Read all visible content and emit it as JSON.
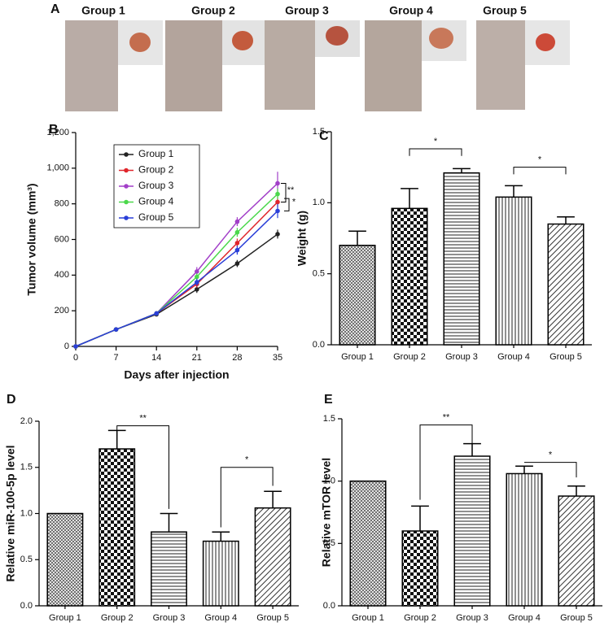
{
  "figure_a": {
    "label": "A",
    "titles": [
      "Group 1",
      "Group 2",
      "Group 3",
      "Group 4",
      "Group 5"
    ]
  },
  "chart_data": [
    {
      "type": "line",
      "label": "B",
      "y_label": "Tumor volume (mm³)",
      "x_label": "Days after injection",
      "x": [
        0,
        7,
        14,
        21,
        28,
        35
      ],
      "xlim": [
        0,
        35
      ],
      "xticks": [
        0,
        7,
        14,
        21,
        28,
        35
      ],
      "ylim": [
        0,
        1200
      ],
      "yticks": [
        0,
        200,
        400,
        600,
        800,
        {
          "value": 1000,
          "label": "1,000"
        },
        {
          "value": 1200,
          "label": "1,200"
        }
      ],
      "legend": "upper left",
      "series": [
        {
          "name": "Group 1",
          "color": "#222222",
          "values": [
            0,
            95,
            180,
            320,
            465,
            630
          ],
          "errors": [
            0,
            5,
            10,
            20,
            20,
            25
          ]
        },
        {
          "name": "Group 2",
          "color": "#e0252b",
          "values": [
            0,
            95,
            185,
            350,
            580,
            810
          ],
          "errors": [
            0,
            5,
            10,
            20,
            25,
            30
          ]
        },
        {
          "name": "Group 3",
          "color": "#a23fc8",
          "values": [
            0,
            95,
            185,
            420,
            700,
            915
          ],
          "errors": [
            0,
            5,
            10,
            25,
            25,
            65
          ]
        },
        {
          "name": "Group 4",
          "color": "#4bd84b",
          "values": [
            0,
            95,
            185,
            390,
            640,
            855
          ],
          "errors": [
            0,
            5,
            10,
            20,
            25,
            30
          ]
        },
        {
          "name": "Group 5",
          "color": "#2a3fd8",
          "values": [
            0,
            95,
            185,
            360,
            540,
            760
          ],
          "errors": [
            0,
            5,
            10,
            20,
            25,
            40
          ]
        }
      ],
      "annotations": [
        "**",
        "*"
      ]
    },
    {
      "type": "bar",
      "label": "C",
      "y_label": "Weight (g)",
      "categories": [
        "Group 1",
        "Group 2",
        "Group 3",
        "Group 4",
        "Group 5"
      ],
      "values": [
        0.7,
        0.96,
        1.21,
        1.04,
        0.85
      ],
      "errors": [
        0.1,
        0.14,
        0.03,
        0.08,
        0.05
      ],
      "ylim": [
        0,
        1.5
      ],
      "yticks": [
        {
          "value": 0,
          "label": "0.0"
        },
        0.5,
        {
          "value": 1,
          "label": "1.0"
        },
        1.5
      ],
      "annotations": [
        "*",
        "*"
      ]
    },
    {
      "type": "bar",
      "label": "D",
      "y_label": "Relative miR-100-5p level",
      "categories": [
        "Group 1",
        "Group 2",
        "Group 3",
        "Group 4",
        "Group 5"
      ],
      "values": [
        1.0,
        1.7,
        0.8,
        0.7,
        1.06
      ],
      "errors": [
        0,
        0.2,
        0.2,
        0.1,
        0.18
      ],
      "ylim": [
        0,
        2
      ],
      "yticks": [
        {
          "value": 0,
          "label": "0.0"
        },
        0.5,
        {
          "value": 1,
          "label": "1.0"
        },
        1.5,
        {
          "value": 2,
          "label": "2.0"
        }
      ],
      "annotations": [
        "**",
        "*"
      ]
    },
    {
      "type": "bar",
      "label": "E",
      "y_label": "Relative mTOR level",
      "categories": [
        "Group 1",
        "Group 2",
        "Group 3",
        "Group 4",
        "Group 5"
      ],
      "values": [
        1.0,
        0.6,
        1.2,
        1.06,
        0.88
      ],
      "errors": [
        0,
        0.2,
        0.1,
        0.06,
        0.08
      ],
      "ylim": [
        0,
        1.5
      ],
      "yticks": [
        {
          "value": 0,
          "label": "0.0"
        },
        0.5,
        {
          "value": 1,
          "label": "1.0"
        },
        1.5
      ],
      "annotations": [
        "**",
        "*"
      ]
    }
  ]
}
